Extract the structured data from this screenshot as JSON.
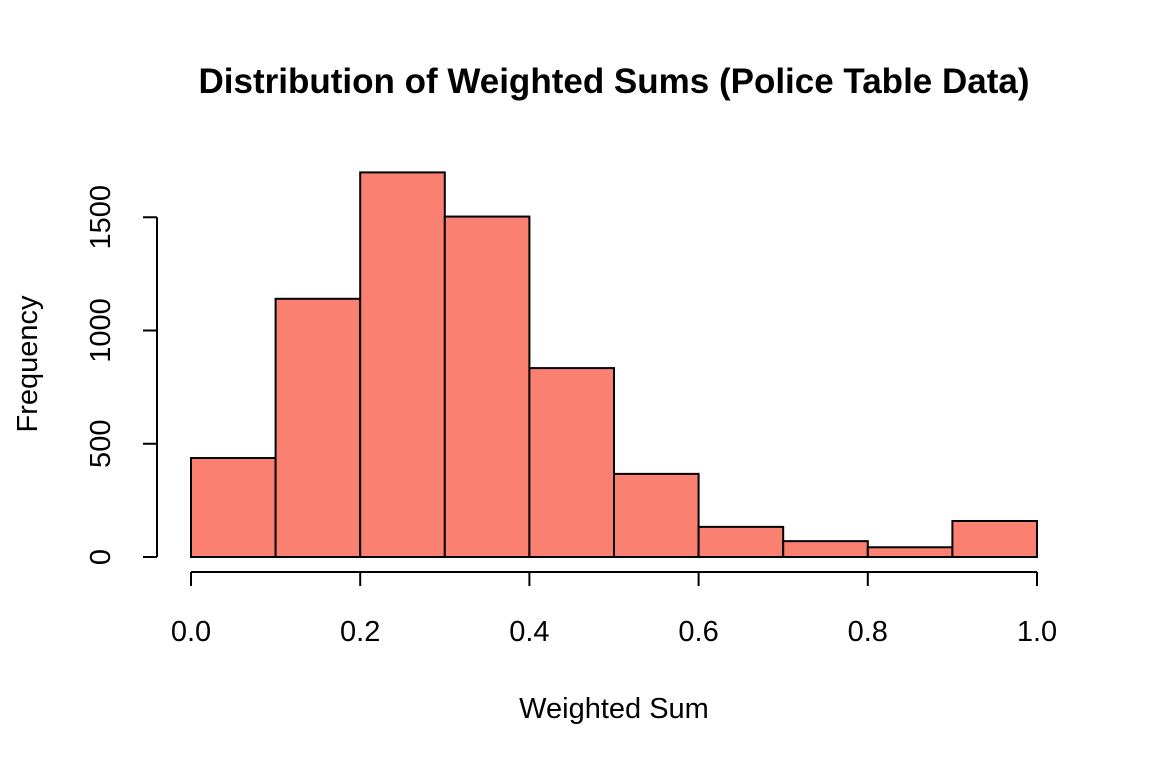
{
  "chart_data": {
    "type": "bar",
    "title": "Distribution of Weighted Sums (Police Table Data)",
    "xlabel": "Weighted Sum",
    "ylabel": "Frequency",
    "bin_edges": [
      0.0,
      0.1,
      0.2,
      0.3,
      0.4,
      0.5,
      0.6,
      0.7,
      0.8,
      0.9,
      1.0
    ],
    "values": [
      437,
      1140,
      1698,
      1503,
      834,
      367,
      133,
      70,
      43,
      159
    ],
    "xlim": [
      0.0,
      1.0
    ],
    "ylim": [
      0,
      1700
    ],
    "x_ticks": [
      0.0,
      0.2,
      0.4,
      0.6,
      0.8,
      1.0
    ],
    "x_tick_labels": [
      "0.0",
      "0.2",
      "0.4",
      "0.6",
      "0.8",
      "1.0"
    ],
    "y_ticks": [
      0,
      500,
      1000,
      1500
    ],
    "y_tick_labels": [
      "0",
      "500",
      "1000",
      "1500"
    ],
    "bar_color": "#FA8072",
    "grid": false
  }
}
